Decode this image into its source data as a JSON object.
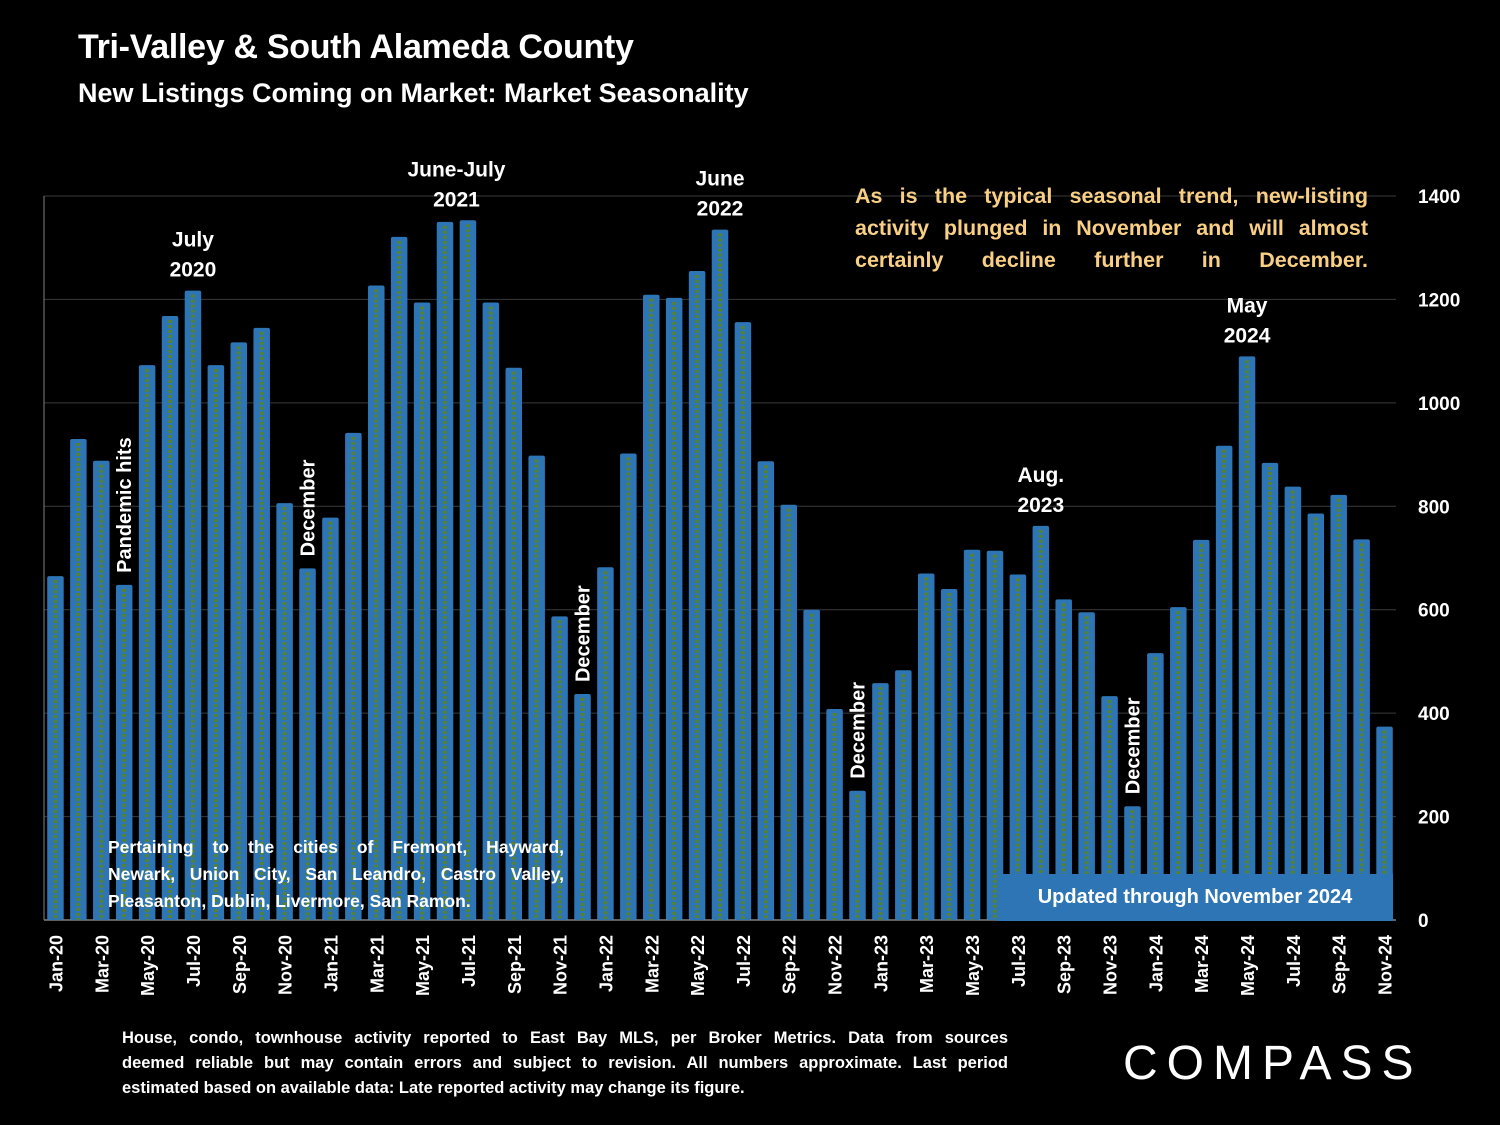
{
  "title": "Tri-Valley & South Alameda County",
  "subtitle": "New Listings Coming on Market: Market Seasonality",
  "callout": {
    "lines": [
      "As is the typical seasonal trend, new-listing",
      "activity plunged in November and will almost",
      "certainly decline further in December."
    ],
    "color": "#f8cf84"
  },
  "cities_note": {
    "lines": [
      "Pertaining to the cities of Fremont, Hayward,",
      "Newark, Union City, San Leandro, Castro Valley,",
      "Pleasanton, Dublin, Livermore, San Ramon."
    ]
  },
  "updated_badge": "Updated through November 2024",
  "footnote": {
    "lines": [
      "House, condo, townhouse activity reported to East Bay MLS, per Broker Metrics. Data from sources",
      "deemed reliable but may contain errors and subject to revision. All numbers approximate. Last period",
      "estimated based on available data: Late reported activity may change its figure."
    ]
  },
  "logo": "COMPASS",
  "colors": {
    "bar": "#2e75b6",
    "bar_stripe": "#548235",
    "grid": "#3a3a3a",
    "background": "#000000",
    "badge": "#2e75b6"
  },
  "chart_data": {
    "type": "bar",
    "ylim": [
      0,
      1400
    ],
    "yticks": [
      0,
      200,
      400,
      600,
      800,
      1000,
      1200,
      1400
    ],
    "y_axis_side": "right",
    "grid": true,
    "categories": [
      "Jan-20",
      "Feb-20",
      "Mar-20",
      "Apr-20",
      "May-20",
      "Jun-20",
      "Jul-20",
      "Aug-20",
      "Sep-20",
      "Oct-20",
      "Nov-20",
      "Dec-20",
      "Jan-21",
      "Feb-21",
      "Mar-21",
      "Apr-21",
      "May-21",
      "Jun-21",
      "Jul-21",
      "Aug-21",
      "Sep-21",
      "Oct-21",
      "Nov-21",
      "Dec-21",
      "Jan-22",
      "Feb-22",
      "Mar-22",
      "Apr-22",
      "May-22",
      "Jun-22",
      "Jul-22",
      "Aug-22",
      "Sep-22",
      "Oct-22",
      "Nov-22",
      "Dec-22",
      "Jan-23",
      "Feb-23",
      "Mar-23",
      "Apr-23",
      "May-23",
      "Jun-23",
      "Jul-23",
      "Aug-23",
      "Sep-23",
      "Oct-23",
      "Nov-23",
      "Dec-23",
      "Jan-24",
      "Feb-24",
      "Mar-24",
      "Apr-24",
      "May-24",
      "Jun-24",
      "Jul-24",
      "Aug-24",
      "Sep-24",
      "Oct-24",
      "Nov-24"
    ],
    "tick_labels": [
      "Jan-20",
      "Mar-20",
      "May-20",
      "Jul-20",
      "Sep-20",
      "Nov-20",
      "Jan-21",
      "Mar-21",
      "May-21",
      "Jul-21",
      "Sep-21",
      "Nov-21",
      "Jan-22",
      "Mar-22",
      "May-22",
      "Jul-22",
      "Sep-22",
      "Nov-22",
      "Jan-23",
      "Mar-23",
      "May-23",
      "Jul-23",
      "Sep-23",
      "Nov-23",
      "Jan-24",
      "Mar-24",
      "May-24",
      "Jul-24",
      "Sep-24",
      "Nov-24"
    ],
    "values": [
      665,
      930,
      888,
      648,
      1073,
      1168,
      1217,
      1073,
      1117,
      1145,
      806,
      680,
      778,
      942,
      1227,
      1321,
      1194,
      1350,
      1353,
      1194,
      1068,
      898,
      587,
      437,
      682,
      902,
      1209,
      1203,
      1255,
      1335,
      1156,
      887,
      803,
      600,
      408,
      250,
      458,
      483,
      670,
      640,
      716,
      714,
      668,
      762,
      620,
      595,
      433,
      220,
      516,
      605,
      735,
      917,
      1090,
      884,
      838,
      786,
      822,
      736,
      374
    ],
    "annotations": [
      {
        "text": "Pandemic hits",
        "index": 3,
        "vertical": true
      },
      {
        "text": "July\n2020",
        "index": 6,
        "vertical": false
      },
      {
        "text": "December",
        "index": 11,
        "vertical": true
      },
      {
        "text": "June-July\n2021",
        "index": 17.5,
        "vertical": false
      },
      {
        "text": "December",
        "index": 23,
        "vertical": true
      },
      {
        "text": "June\n2022",
        "index": 29,
        "vertical": false
      },
      {
        "text": "December",
        "index": 35,
        "vertical": true
      },
      {
        "text": "Aug.\n2023",
        "index": 43,
        "vertical": false
      },
      {
        "text": "December",
        "index": 47,
        "vertical": true
      },
      {
        "text": "May\n2024",
        "index": 52,
        "vertical": false
      }
    ]
  }
}
